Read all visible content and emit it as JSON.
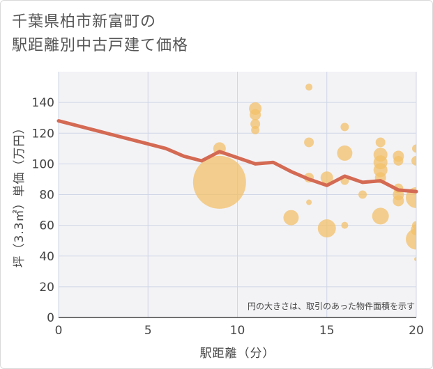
{
  "title": {
    "line1": "千葉県柏市新富町の",
    "line2": "駅距離別中古戸建て価格"
  },
  "chart_data": {
    "type": "scatter",
    "xlabel": "駅距離（分）",
    "ylabel": "坪（3.3㎡）単価（万円）",
    "xlim": [
      0,
      20
    ],
    "ylim": [
      0,
      160
    ],
    "x_ticks": [
      0,
      5,
      10,
      15,
      20
    ],
    "y_ticks": [
      0,
      20,
      40,
      60,
      80,
      100,
      120,
      140
    ],
    "grid": true,
    "annotation": "円の大きさは、取引のあった物件面積を示す",
    "colors": {
      "bubble": "#f3c069",
      "line": "#d46a53",
      "grid": "#cfd6e6",
      "plot_bg": "#f3f3f6"
    },
    "bubbles": [
      {
        "x": 9,
        "y": 88,
        "size": 38
      },
      {
        "x": 9,
        "y": 110,
        "size": 9
      },
      {
        "x": 11,
        "y": 136,
        "size": 9
      },
      {
        "x": 11,
        "y": 132,
        "size": 8
      },
      {
        "x": 11,
        "y": 126,
        "size": 7
      },
      {
        "x": 11,
        "y": 122,
        "size": 6
      },
      {
        "x": 13,
        "y": 65,
        "size": 11
      },
      {
        "x": 14,
        "y": 150,
        "size": 5
      },
      {
        "x": 14,
        "y": 114,
        "size": 7
      },
      {
        "x": 14,
        "y": 91,
        "size": 7
      },
      {
        "x": 14,
        "y": 75,
        "size": 4
      },
      {
        "x": 15,
        "y": 91,
        "size": 9
      },
      {
        "x": 15,
        "y": 58,
        "size": 13
      },
      {
        "x": 16,
        "y": 124,
        "size": 6
      },
      {
        "x": 16,
        "y": 107,
        "size": 11
      },
      {
        "x": 16,
        "y": 89,
        "size": 6
      },
      {
        "x": 16,
        "y": 60,
        "size": 5
      },
      {
        "x": 17,
        "y": 80,
        "size": 6
      },
      {
        "x": 18,
        "y": 114,
        "size": 7
      },
      {
        "x": 18,
        "y": 106,
        "size": 10
      },
      {
        "x": 18,
        "y": 101,
        "size": 10
      },
      {
        "x": 18,
        "y": 96,
        "size": 10
      },
      {
        "x": 18,
        "y": 91,
        "size": 8
      },
      {
        "x": 18,
        "y": 66,
        "size": 12
      },
      {
        "x": 19,
        "y": 105,
        "size": 8
      },
      {
        "x": 19,
        "y": 102,
        "size": 7
      },
      {
        "x": 19,
        "y": 84,
        "size": 7
      },
      {
        "x": 19,
        "y": 80,
        "size": 8
      },
      {
        "x": 19,
        "y": 76,
        "size": 8
      },
      {
        "x": 20,
        "y": 110,
        "size": 6
      },
      {
        "x": 20,
        "y": 102,
        "size": 7
      },
      {
        "x": 20,
        "y": 78,
        "size": 15
      },
      {
        "x": 20,
        "y": 60,
        "size": 6
      },
      {
        "x": 20,
        "y": 57,
        "size": 8
      },
      {
        "x": 20,
        "y": 51,
        "size": 15
      },
      {
        "x": 20,
        "y": 38,
        "size": 3
      }
    ],
    "trend_line": {
      "x": [
        0,
        1,
        2,
        3,
        4,
        5,
        6,
        7,
        8,
        9,
        10,
        11,
        12,
        13,
        14,
        15,
        16,
        17,
        18,
        19,
        20
      ],
      "y": [
        128,
        125,
        122,
        119,
        116,
        113,
        110,
        105,
        102,
        108,
        104,
        100,
        101,
        95,
        90,
        86,
        92,
        88,
        89,
        83,
        82
      ]
    }
  }
}
